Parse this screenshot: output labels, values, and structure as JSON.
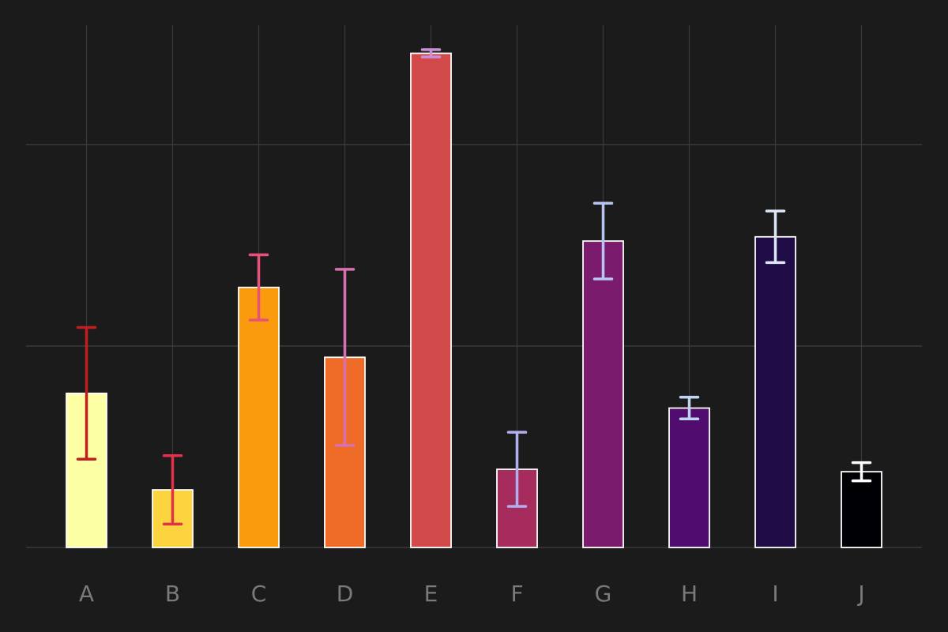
{
  "chart_data": {
    "type": "bar",
    "categories": [
      "A",
      "B",
      "C",
      "D",
      "E",
      "F",
      "G",
      "H",
      "I",
      "J"
    ],
    "values": [
      0.765,
      0.286,
      1.291,
      0.944,
      2.453,
      0.388,
      1.521,
      0.692,
      1.542,
      0.376
    ],
    "errors": [
      0.327,
      0.17,
      0.162,
      0.437,
      0.018,
      0.184,
      0.188,
      0.054,
      0.128,
      0.045
    ],
    "ylim": [
      0,
      2.55
    ],
    "grid": true,
    "style": {
      "background": "#1b1b1b",
      "grid_color": "#3a3a3a",
      "bar_edge_color": "#ffffff",
      "tick_label_color": "#7a7a7a"
    },
    "bar_colors": [
      "#fcffa4",
      "#fbd43f",
      "#fa9b0e",
      "#ee6c28",
      "#d14949",
      "#a72c5e",
      "#7a1b6d",
      "#500d6d",
      "#1f0c47",
      "#000004"
    ],
    "error_colors": [
      "#c11f1f",
      "#e5304a",
      "#e7517a",
      "#da6fb3",
      "#c98fd7",
      "#b3aef0",
      "#b8c4f2",
      "#c2d4f3",
      "#dde8f7",
      "#ffffff"
    ]
  }
}
